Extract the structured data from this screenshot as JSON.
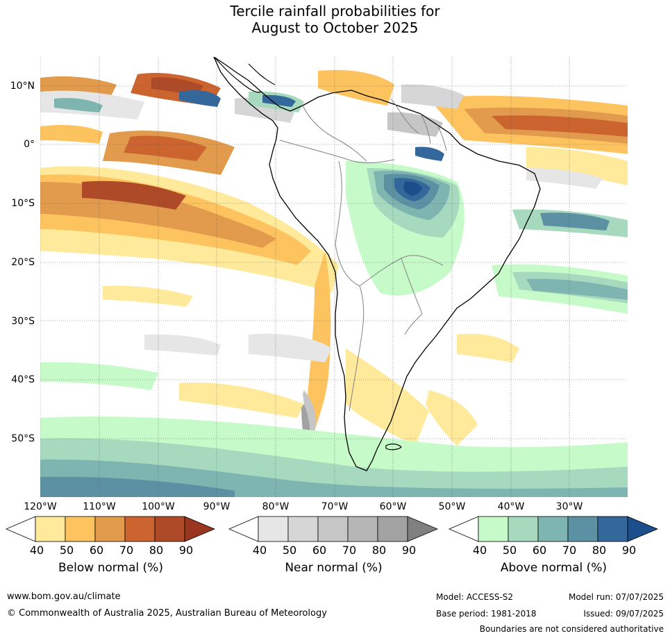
{
  "title": {
    "line1": "Tercile rainfall probabilities for",
    "line2": "August to October 2025"
  },
  "map": {
    "lat_labels": [
      "10°N",
      "0°",
      "10°S",
      "20°S",
      "30°S",
      "40°S",
      "50°S"
    ],
    "lon_labels": [
      "120°W",
      "110°W",
      "100°W",
      "90°W",
      "80°W",
      "70°W",
      "60°W",
      "50°W",
      "40°W",
      "30°W"
    ],
    "colors": {
      "ocean_bg": "#ffffff",
      "coastline": "#000000",
      "borders": "#808080",
      "gridlines": "#555555"
    }
  },
  "legends": [
    {
      "title": "Below normal (%)",
      "ticks": [
        "40",
        "50",
        "60",
        "70",
        "80",
        "90"
      ],
      "colors": [
        "#ffffff",
        "#ffe99a",
        "#fdc35f",
        "#e29a4d",
        "#cc6430",
        "#ae4a27",
        "#9a3620"
      ]
    },
    {
      "title": "Near normal (%)",
      "ticks": [
        "40",
        "50",
        "60",
        "70",
        "80",
        "90"
      ],
      "colors": [
        "#ffffff",
        "#e6e6e6",
        "#d6d6d6",
        "#c6c6c6",
        "#b6b6b6",
        "#a2a2a2",
        "#808080"
      ]
    },
    {
      "title": "Above normal (%)",
      "ticks": [
        "40",
        "50",
        "60",
        "70",
        "80",
        "90"
      ],
      "colors": [
        "#ffffff",
        "#c6fbc9",
        "#a6d9bd",
        "#7fb5b1",
        "#5b91a2",
        "#34679a",
        "#1c4e8c"
      ]
    }
  ],
  "footer": {
    "website": "www.bom.gov.au/climate",
    "copyright": "© Commonwealth of Australia 2025, Australian Bureau of Meteorology",
    "model": "Model: ACCESS-S2",
    "base_period": "Base period: 1981-2018",
    "model_run": "Model run: 07/07/2025",
    "issued": "Issued: 09/07/2025",
    "boundaries_note": "Boundaries are not considered authoritative"
  }
}
